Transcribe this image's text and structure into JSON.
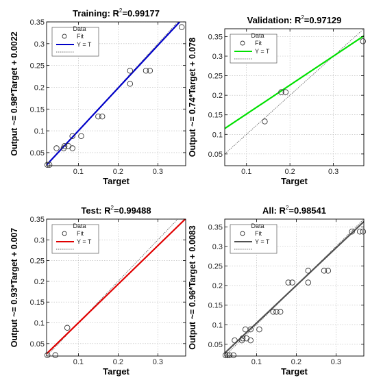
{
  "chart_data": [
    {
      "type": "scatter",
      "title_main": "Training: R",
      "title_sup": "2",
      "title_value": "=0.99177",
      "xlabel": "Target",
      "ylabel": "Output ~= 0.98*Target + 0.0022",
      "xlim": [
        0.02,
        0.37
      ],
      "ylim": [
        0.02,
        0.35
      ],
      "xticks": [
        {
          "value": 0.1,
          "label": "0.1"
        },
        {
          "value": 0.2,
          "label": "0.2"
        },
        {
          "value": 0.3,
          "label": "0.3"
        }
      ],
      "yticks": [
        {
          "value": 0.05,
          "label": "0.05"
        },
        {
          "value": 0.1,
          "label": "0.1"
        },
        {
          "value": 0.15,
          "label": "0.15"
        },
        {
          "value": 0.2,
          "label": "0.2"
        },
        {
          "value": 0.25,
          "label": "0.25"
        },
        {
          "value": 0.3,
          "label": "0.3"
        },
        {
          "value": 0.35,
          "label": "0.35"
        }
      ],
      "fit": {
        "slope": 0.98,
        "intercept": 0.0022,
        "color": "#0000c8"
      },
      "identity_line": true,
      "grid": true,
      "legend": {
        "placement": "top-left",
        "title": "Data",
        "entries": [
          "Fit",
          "Y = T"
        ]
      },
      "points": [
        [
          0.022,
          0.022
        ],
        [
          0.027,
          0.022
        ],
        [
          0.045,
          0.06
        ],
        [
          0.063,
          0.06
        ],
        [
          0.065,
          0.065
        ],
        [
          0.075,
          0.065
        ],
        [
          0.085,
          0.06
        ],
        [
          0.085,
          0.088
        ],
        [
          0.107,
          0.088
        ],
        [
          0.15,
          0.133
        ],
        [
          0.16,
          0.133
        ],
        [
          0.23,
          0.208
        ],
        [
          0.23,
          0.238
        ],
        [
          0.27,
          0.238
        ],
        [
          0.28,
          0.238
        ],
        [
          0.36,
          0.338
        ]
      ]
    },
    {
      "type": "scatter",
      "title_main": "Validation: R",
      "title_sup": "2",
      "title_value": "=0.97129",
      "xlabel": "Target",
      "ylabel": "Output ~= 0.74*Target + 0.078",
      "xlim": [
        0.05,
        0.37
      ],
      "ylim": [
        0.02,
        0.37
      ],
      "xticks": [
        {
          "value": 0.1,
          "label": "0.1"
        },
        {
          "value": 0.2,
          "label": "0.2"
        },
        {
          "value": 0.3,
          "label": "0.3"
        }
      ],
      "yticks": [
        {
          "value": 0.05,
          "label": "0.05"
        },
        {
          "value": 0.1,
          "label": "0.1"
        },
        {
          "value": 0.15,
          "label": "0.15"
        },
        {
          "value": 0.2,
          "label": "0.2"
        },
        {
          "value": 0.25,
          "label": "0.25"
        },
        {
          "value": 0.3,
          "label": "0.3"
        },
        {
          "value": 0.35,
          "label": "0.35"
        }
      ],
      "fit": {
        "slope": 0.74,
        "intercept": 0.078,
        "color": "#00e000"
      },
      "identity_line": true,
      "grid": true,
      "legend": {
        "placement": "top-left",
        "title": "Data",
        "entries": [
          "Fit",
          "Y = T"
        ]
      },
      "points": [
        [
          0.142,
          0.133
        ],
        [
          0.18,
          0.208
        ],
        [
          0.19,
          0.208
        ],
        [
          0.368,
          0.338
        ]
      ]
    },
    {
      "type": "scatter",
      "title_main": "Test: R",
      "title_sup": "2",
      "title_value": "=0.99488",
      "xlabel": "Target",
      "ylabel": "Output ~= 0.93*Target + 0.007",
      "xlim": [
        0.02,
        0.37
      ],
      "ylim": [
        0.02,
        0.35
      ],
      "xticks": [
        {
          "value": 0.1,
          "label": "0.1"
        },
        {
          "value": 0.2,
          "label": "0.2"
        },
        {
          "value": 0.3,
          "label": "0.3"
        }
      ],
      "yticks": [
        {
          "value": 0.05,
          "label": "0.05"
        },
        {
          "value": 0.1,
          "label": "0.1"
        },
        {
          "value": 0.15,
          "label": "0.15"
        },
        {
          "value": 0.2,
          "label": "0.2"
        },
        {
          "value": 0.25,
          "label": "0.25"
        },
        {
          "value": 0.3,
          "label": "0.3"
        },
        {
          "value": 0.35,
          "label": "0.35"
        }
      ],
      "fit": {
        "slope": 0.93,
        "intercept": 0.007,
        "color": "#e00000"
      },
      "identity_line": true,
      "grid": true,
      "legend": {
        "placement": "top-left",
        "title": "Data",
        "entries": [
          "Fit",
          "Y = T"
        ]
      },
      "points": [
        [
          0.022,
          0.022
        ],
        [
          0.042,
          0.022
        ],
        [
          0.072,
          0.088
        ]
      ]
    },
    {
      "type": "scatter",
      "title_main": "All: R",
      "title_sup": "2",
      "title_value": "=0.98541",
      "xlabel": "Target",
      "ylabel": "Output ~= 0.96*Target + 0.0083",
      "xlim": [
        0.02,
        0.37
      ],
      "ylim": [
        0.02,
        0.37
      ],
      "xticks": [
        {
          "value": 0.1,
          "label": "0.1"
        },
        {
          "value": 0.2,
          "label": "0.2"
        },
        {
          "value": 0.3,
          "label": "0.3"
        }
      ],
      "yticks": [
        {
          "value": 0.05,
          "label": "0.05"
        },
        {
          "value": 0.1,
          "label": "0.1"
        },
        {
          "value": 0.15,
          "label": "0.15"
        },
        {
          "value": 0.2,
          "label": "0.2"
        },
        {
          "value": 0.25,
          "label": "0.25"
        },
        {
          "value": 0.3,
          "label": "0.3"
        },
        {
          "value": 0.35,
          "label": "0.35"
        }
      ],
      "fit": {
        "slope": 0.96,
        "intercept": 0.0083,
        "color": "#505050"
      },
      "identity_line": true,
      "grid": true,
      "legend": {
        "placement": "top-left",
        "title": "Data",
        "entries": [
          "Fit",
          "Y = T"
        ]
      },
      "points": [
        [
          0.022,
          0.022
        ],
        [
          0.027,
          0.022
        ],
        [
          0.032,
          0.022
        ],
        [
          0.042,
          0.022
        ],
        [
          0.045,
          0.06
        ],
        [
          0.063,
          0.06
        ],
        [
          0.065,
          0.065
        ],
        [
          0.072,
          0.088
        ],
        [
          0.075,
          0.065
        ],
        [
          0.085,
          0.06
        ],
        [
          0.085,
          0.088
        ],
        [
          0.107,
          0.088
        ],
        [
          0.142,
          0.133
        ],
        [
          0.15,
          0.133
        ],
        [
          0.16,
          0.133
        ],
        [
          0.18,
          0.208
        ],
        [
          0.19,
          0.208
        ],
        [
          0.23,
          0.208
        ],
        [
          0.23,
          0.238
        ],
        [
          0.27,
          0.238
        ],
        [
          0.28,
          0.238
        ],
        [
          0.34,
          0.338
        ],
        [
          0.36,
          0.338
        ],
        [
          0.368,
          0.338
        ]
      ]
    }
  ]
}
